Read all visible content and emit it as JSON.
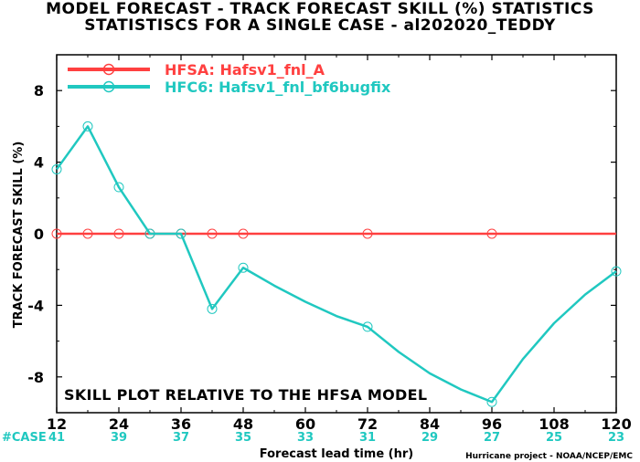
{
  "header": {
    "title_line1": "MODEL FORECAST - TRACK FORECAST SKILL (%) STATISTICS",
    "title_line2": "STATISTISCS FOR A SINGLE CASE - al202020_TEDDY"
  },
  "colors": {
    "hfsa": "#ff4040",
    "hfc6": "#20c8c0",
    "case_label": "#20c8c0"
  },
  "note": "SKILL PLOT RELATIVE TO THE HFSA MODEL",
  "credit": "Hurricane project - NOAA/NCEP/EMC",
  "case_prefix": "#CASE",
  "chart_data": {
    "type": "line",
    "xlabel": "Forecast lead time (hr)",
    "ylabel": "TRACK FORECAST SKILL (%)",
    "xlim": [
      12,
      120
    ],
    "ylim": [
      -10,
      10
    ],
    "xticks": [
      12,
      24,
      36,
      48,
      60,
      72,
      84,
      96,
      108,
      120
    ],
    "yticks": [
      -8,
      -4,
      0,
      4,
      8
    ],
    "grid": false,
    "legend_position": "top-left",
    "series": [
      {
        "name": "HFSA: Hafsv1_fnl_A",
        "color": "#ff4040",
        "x": [
          12,
          18,
          24,
          30,
          36,
          42,
          48,
          72,
          96,
          120
        ],
        "y": [
          0,
          0,
          0,
          0,
          0,
          0,
          0,
          0,
          0,
          0
        ],
        "marked_x": [
          12,
          18,
          24,
          30,
          36,
          42,
          48,
          72,
          96
        ]
      },
      {
        "name": "HFC6: Hafsv1_fnl_bf6bugfix",
        "color": "#20c8c0",
        "x": [
          12,
          18,
          24,
          30,
          36,
          42,
          48,
          54,
          60,
          66,
          72,
          78,
          84,
          90,
          96,
          102,
          108,
          114,
          120
        ],
        "y": [
          3.6,
          6.0,
          2.6,
          0.0,
          0.0,
          -4.2,
          -1.9,
          -2.9,
          -3.8,
          -4.6,
          -5.2,
          -6.6,
          -7.8,
          -8.7,
          -9.4,
          -7.0,
          -5.0,
          -3.4,
          -2.1
        ],
        "marked_x": [
          12,
          18,
          24,
          30,
          36,
          42,
          48,
          72,
          96,
          120
        ]
      }
    ],
    "case_counts": {
      "x": [
        12,
        24,
        36,
        48,
        60,
        72,
        84,
        96,
        108,
        120
      ],
      "counts": [
        "41",
        "39",
        "37",
        "35",
        "33",
        "31",
        "29",
        "27",
        "25",
        "23"
      ]
    }
  }
}
